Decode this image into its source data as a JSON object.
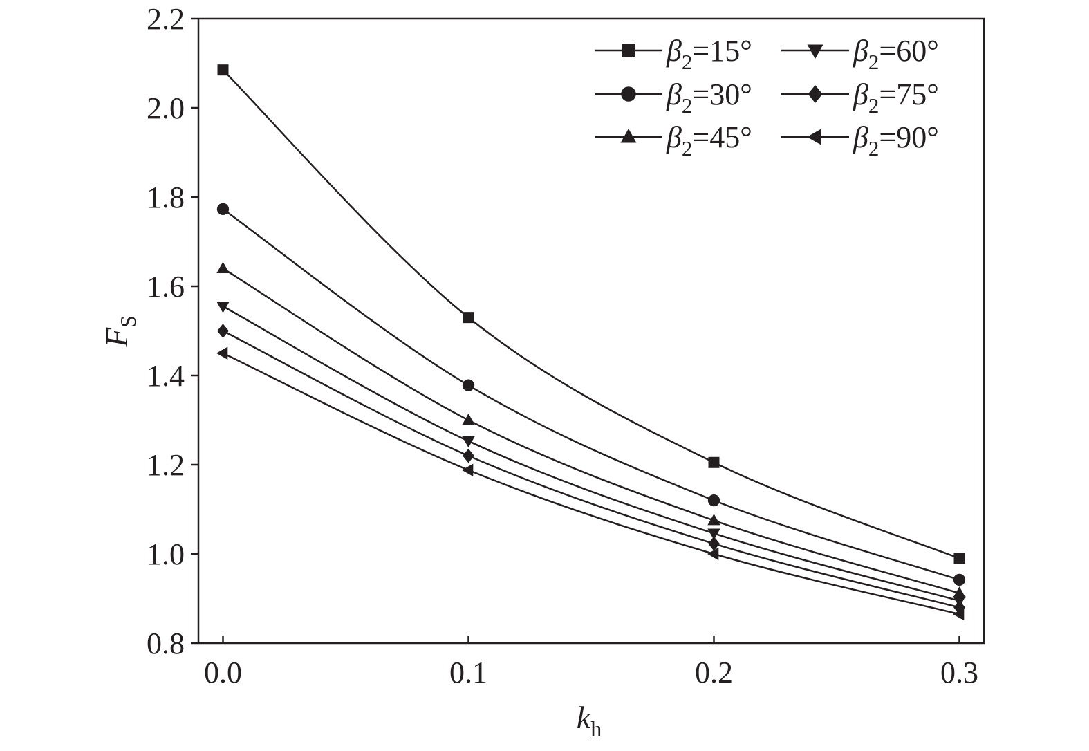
{
  "chart_data": {
    "type": "line",
    "xlabel": {
      "main": "k",
      "sub": "h"
    },
    "ylabel": {
      "main": "F",
      "sub": "S"
    },
    "x": [
      0.0,
      0.1,
      0.2,
      0.3
    ],
    "xlim": [
      -0.01,
      0.31
    ],
    "ylim": [
      0.8,
      2.2
    ],
    "xticks": [
      "0.0",
      "0.1",
      "0.2",
      "0.3"
    ],
    "yticks": [
      "0.8",
      "1.0",
      "1.2",
      "1.4",
      "1.6",
      "1.8",
      "2.0",
      "2.2"
    ],
    "grid": false,
    "legend_position": "top-right",
    "series": [
      {
        "name": "β2=15°",
        "label_main": "β",
        "label_sub": "2",
        "label_rest": "=15°",
        "marker": "square",
        "values": [
          2.085,
          1.53,
          1.205,
          0.99
        ]
      },
      {
        "name": "β2=30°",
        "label_main": "β",
        "label_sub": "2",
        "label_rest": "=30°",
        "marker": "circle",
        "values": [
          1.773,
          1.378,
          1.12,
          0.942
        ]
      },
      {
        "name": "β2=45°",
        "label_main": "β",
        "label_sub": "2",
        "label_rest": "=45°",
        "marker": "triangle-up",
        "values": [
          1.64,
          1.3,
          1.075,
          0.912
        ]
      },
      {
        "name": "β2=60°",
        "label_main": "β",
        "label_sub": "2",
        "label_rest": "=60°",
        "marker": "triangle-down",
        "values": [
          1.555,
          1.253,
          1.046,
          0.895
        ]
      },
      {
        "name": "β2=75°",
        "label_main": "β",
        "label_sub": "2",
        "label_rest": "=75°",
        "marker": "diamond",
        "values": [
          1.5,
          1.22,
          1.023,
          0.88
        ]
      },
      {
        "name": "β2=90°",
        "label_main": "β",
        "label_sub": "2",
        "label_rest": "=90°",
        "marker": "triangle-left",
        "values": [
          1.45,
          1.188,
          1.0,
          0.865
        ]
      }
    ],
    "colors": {
      "line": "#231f20",
      "background": "#ffffff"
    }
  }
}
